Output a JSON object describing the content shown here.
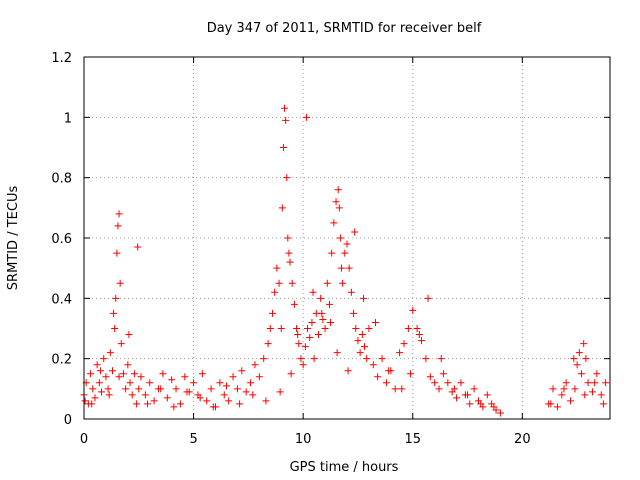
{
  "chart_data": {
    "type": "scatter",
    "title": "Day 347 of 2011, SRMTID for receiver belf",
    "xlabel": "GPS time / hours",
    "ylabel": "SRMTID / TECUs",
    "xlim": [
      0,
      24
    ],
    "ylim": [
      0,
      1.2
    ],
    "xticks": [
      0,
      5,
      10,
      15,
      20
    ],
    "xtick_labels": [
      "0",
      "5",
      "10",
      "15",
      "20"
    ],
    "yticks": [
      0,
      0.2,
      0.4,
      0.6,
      0.8,
      1,
      1.2
    ],
    "ytick_labels": [
      "0",
      "0.2",
      "0.4",
      "0.6",
      "0.8",
      "1",
      "1.2"
    ],
    "grid": true,
    "marker": "+",
    "series": [
      {
        "name": "SRMTID",
        "color": "#ff0000",
        "x": [
          0.0,
          0.1,
          0.2,
          0.3,
          0.4,
          0.5,
          0.6,
          0.7,
          0.8,
          0.9,
          1.0,
          1.1,
          1.2,
          1.3,
          1.4,
          1.45,
          1.5,
          1.55,
          1.6,
          1.65,
          1.7,
          1.8,
          1.9,
          2.0,
          2.1,
          2.2,
          2.3,
          2.4,
          2.5,
          2.6,
          2.8,
          3.0,
          3.2,
          3.4,
          3.6,
          3.8,
          4.0,
          4.2,
          4.4,
          4.6,
          4.8,
          5.0,
          5.2,
          5.4,
          5.6,
          5.8,
          6.0,
          6.2,
          6.4,
          6.6,
          6.8,
          7.0,
          7.2,
          7.4,
          7.6,
          7.8,
          8.0,
          8.2,
          8.4,
          8.5,
          8.6,
          8.7,
          8.8,
          8.9,
          9.0,
          9.05,
          9.1,
          9.15,
          9.2,
          9.25,
          9.3,
          9.35,
          9.4,
          9.5,
          9.6,
          9.7,
          9.8,
          9.9,
          10.0,
          10.1,
          10.2,
          10.3,
          10.4,
          10.5,
          10.6,
          10.7,
          10.8,
          10.9,
          11.0,
          11.1,
          11.2,
          11.3,
          11.4,
          11.5,
          11.6,
          11.65,
          11.7,
          11.75,
          11.8,
          11.9,
          12.0,
          12.1,
          12.2,
          12.3,
          12.4,
          12.5,
          12.6,
          12.7,
          12.8,
          12.9,
          13.0,
          13.2,
          13.4,
          13.6,
          13.8,
          14.0,
          14.2,
          14.4,
          14.6,
          14.8,
          15.0,
          15.2,
          15.4,
          15.6,
          15.8,
          16.0,
          16.2,
          16.4,
          16.6,
          16.8,
          17.0,
          17.2,
          17.4,
          17.6,
          17.8,
          18.0,
          18.2,
          18.4,
          18.6,
          18.8,
          19.0,
          21.2,
          21.4,
          21.6,
          21.8,
          22.0,
          22.2,
          22.4,
          22.5,
          22.6,
          22.7,
          22.8,
          22.9,
          23.0,
          23.2,
          23.4,
          23.6,
          23.8,
          0.05,
          0.35,
          0.75,
          1.15,
          1.35,
          1.6,
          2.05,
          2.45,
          2.9,
          3.5,
          4.1,
          4.7,
          5.3,
          5.9,
          6.5,
          7.1,
          7.7,
          8.3,
          8.95,
          9.45,
          9.75,
          10.15,
          10.45,
          10.85,
          11.25,
          11.55,
          12.05,
          12.35,
          12.75,
          13.3,
          13.9,
          14.5,
          14.9,
          15.3,
          15.7,
          16.3,
          16.9,
          17.5,
          18.1,
          18.7,
          21.3,
          21.9,
          22.35,
          22.85,
          23.3,
          23.7
        ],
        "y": [
          0.08,
          0.12,
          0.05,
          0.15,
          0.1,
          0.07,
          0.18,
          0.12,
          0.09,
          0.2,
          0.14,
          0.1,
          0.22,
          0.16,
          0.3,
          0.4,
          0.55,
          0.64,
          0.68,
          0.45,
          0.25,
          0.15,
          0.1,
          0.18,
          0.12,
          0.08,
          0.15,
          0.05,
          0.1,
          0.14,
          0.08,
          0.12,
          0.06,
          0.1,
          0.15,
          0.07,
          0.13,
          0.1,
          0.05,
          0.14,
          0.09,
          0.12,
          0.08,
          0.15,
          0.06,
          0.1,
          0.04,
          0.12,
          0.08,
          0.06,
          0.14,
          0.1,
          0.16,
          0.09,
          0.12,
          0.18,
          0.14,
          0.2,
          0.25,
          0.3,
          0.35,
          0.42,
          0.5,
          0.45,
          0.3,
          0.7,
          0.9,
          1.03,
          0.99,
          0.8,
          0.6,
          0.55,
          0.52,
          0.45,
          0.38,
          0.3,
          0.25,
          0.2,
          0.18,
          0.24,
          0.3,
          0.27,
          0.32,
          0.2,
          0.35,
          0.28,
          0.4,
          0.33,
          0.3,
          0.45,
          0.38,
          0.55,
          0.65,
          0.72,
          0.76,
          0.7,
          0.6,
          0.5,
          0.45,
          0.55,
          0.58,
          0.5,
          0.42,
          0.35,
          0.3,
          0.26,
          0.22,
          0.28,
          0.24,
          0.2,
          0.3,
          0.18,
          0.14,
          0.2,
          0.12,
          0.16,
          0.1,
          0.22,
          0.25,
          0.3,
          0.36,
          0.3,
          0.26,
          0.2,
          0.14,
          0.12,
          0.1,
          0.15,
          0.12,
          0.09,
          0.07,
          0.12,
          0.08,
          0.05,
          0.1,
          0.06,
          0.04,
          0.08,
          0.05,
          0.03,
          0.02,
          0.05,
          0.1,
          0.04,
          0.08,
          0.12,
          0.06,
          0.1,
          0.18,
          0.22,
          0.15,
          0.25,
          0.2,
          0.12,
          0.09,
          0.15,
          0.08,
          0.12,
          0.06,
          0.05,
          0.16,
          0.08,
          0.35,
          0.14,
          0.28,
          0.57,
          0.05,
          0.1,
          0.04,
          0.09,
          0.07,
          0.04,
          0.11,
          0.05,
          0.08,
          0.06,
          0.09,
          0.15,
          0.28,
          1.0,
          0.42,
          0.35,
          0.32,
          0.22,
          0.16,
          0.62,
          0.4,
          0.32,
          0.16,
          0.1,
          0.15,
          0.28,
          0.4,
          0.2,
          0.1,
          0.08,
          0.05,
          0.04,
          0.05,
          0.1,
          0.2,
          0.08,
          0.12,
          0.05
        ]
      }
    ]
  }
}
